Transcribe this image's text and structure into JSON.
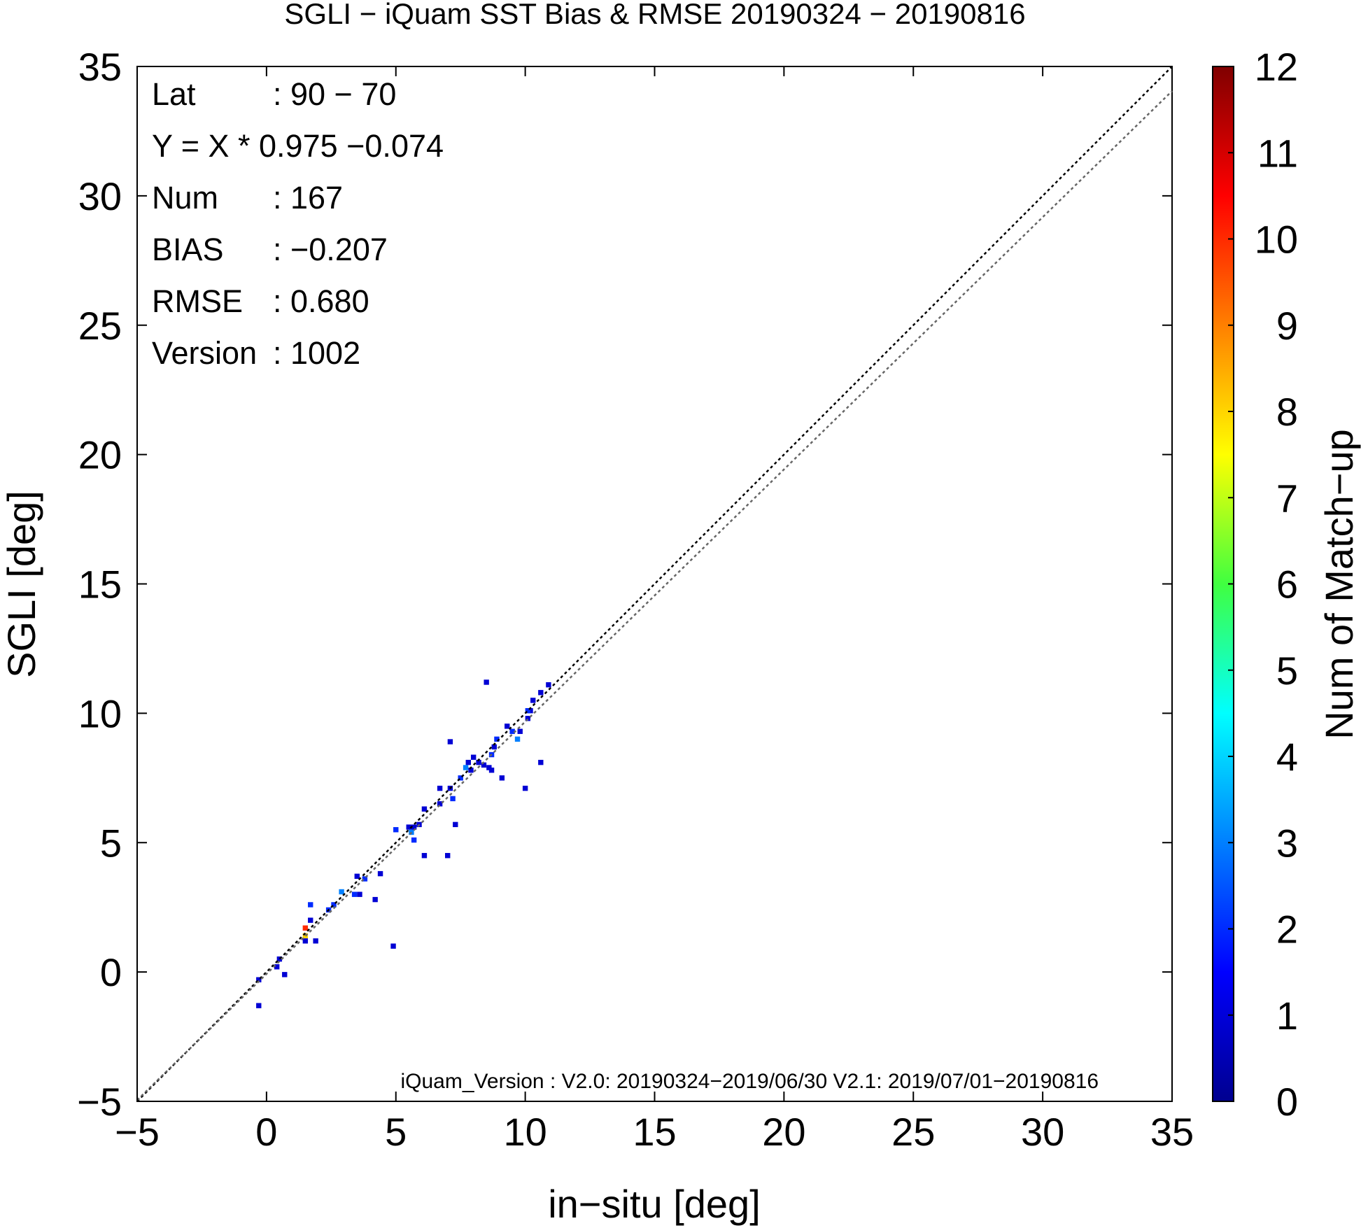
{
  "chart_data": {
    "type": "heatmap",
    "title": "SGLI − iQuam  SST Bias & RMSE 20190324 − 20190816",
    "xlabel": "in−situ [deg]",
    "ylabel": "SGLI [deg]",
    "xlim": [
      -5,
      35
    ],
    "ylim": [
      -5,
      35
    ],
    "xticks": [
      -5,
      0,
      5,
      10,
      15,
      20,
      25,
      30,
      35
    ],
    "yticks": [
      -5,
      0,
      5,
      10,
      15,
      20,
      25,
      30,
      35
    ],
    "x_tick_labels": [
      "−5",
      "0",
      "5",
      "10",
      "15",
      "20",
      "25",
      "30",
      "35"
    ],
    "y_tick_labels": [
      "−5",
      "0",
      "5",
      "10",
      "15",
      "20",
      "25",
      "30",
      "35"
    ],
    "grid": false,
    "stats": [
      {
        "key": "Lat",
        "value": ": 90 − 70"
      },
      {
        "key": "Y = X * 0.975 −0.074",
        "value": ""
      },
      {
        "key": "Num",
        "value": ": 167"
      },
      {
        "key": "BIAS",
        "value": ": −0.207"
      },
      {
        "key": "RMSE",
        "value": ": 0.680"
      },
      {
        "key": "Version",
        "value": ": 1002"
      }
    ],
    "footnote": "iQuam_Version : V2.0: 20190324−2019/06/30 V2.1: 2019/07/01−20190816",
    "lines": [
      {
        "slope": 1.0,
        "intercept": 0.0,
        "style": "dotted",
        "color": "#000000"
      },
      {
        "slope": 0.975,
        "intercept": -0.074,
        "style": "dotted",
        "color": "#666666"
      }
    ],
    "colorbar": {
      "label": "Num of Match−up",
      "range": [
        0,
        12
      ],
      "ticks": [
        0,
        1,
        2,
        3,
        4,
        5,
        6,
        7,
        8,
        9,
        10,
        11,
        12
      ],
      "tick_labels": [
        "0",
        "1",
        "2",
        "3",
        "4",
        "5",
        "6",
        "7",
        "8",
        "9",
        "10",
        "11",
        "12"
      ],
      "colormap": "jet"
    },
    "cell_size": 0.2,
    "cells": [
      [
        -0.3,
        -0.3,
        1
      ],
      [
        -0.3,
        -1.3,
        1
      ],
      [
        0.5,
        0.5,
        1
      ],
      [
        0.4,
        0.2,
        1
      ],
      [
        0.7,
        -0.1,
        1
      ],
      [
        1.5,
        1.7,
        10
      ],
      [
        1.5,
        1.4,
        8
      ],
      [
        1.7,
        2.0,
        1
      ],
      [
        1.5,
        1.2,
        1
      ],
      [
        1.9,
        1.2,
        1
      ],
      [
        1.7,
        2.6,
        2
      ],
      [
        2.4,
        2.4,
        2
      ],
      [
        2.6,
        2.6,
        2
      ],
      [
        2.9,
        3.1,
        3
      ],
      [
        3.4,
        3.0,
        2
      ],
      [
        3.6,
        3.0,
        1
      ],
      [
        3.5,
        3.7,
        1
      ],
      [
        3.8,
        3.6,
        2
      ],
      [
        4.2,
        2.8,
        1
      ],
      [
        4.4,
        3.8,
        1
      ],
      [
        4.9,
        1.0,
        1
      ],
      [
        5.0,
        5.5,
        2
      ],
      [
        5.5,
        5.6,
        1
      ],
      [
        5.6,
        5.4,
        3
      ],
      [
        5.7,
        5.1,
        2
      ],
      [
        5.7,
        5.6,
        1
      ],
      [
        5.9,
        5.7,
        1
      ],
      [
        6.1,
        4.5,
        1
      ],
      [
        6.1,
        6.3,
        1
      ],
      [
        6.7,
        6.5,
        1
      ],
      [
        6.7,
        7.1,
        1
      ],
      [
        7.1,
        7.1,
        1
      ],
      [
        7.0,
        4.5,
        1
      ],
      [
        7.2,
        6.7,
        2
      ],
      [
        7.3,
        5.7,
        1
      ],
      [
        7.1,
        8.9,
        1
      ],
      [
        7.5,
        7.5,
        2
      ],
      [
        7.7,
        7.9,
        3
      ],
      [
        7.8,
        8.1,
        1
      ],
      [
        7.9,
        7.8,
        1
      ],
      [
        8.0,
        8.3,
        1
      ],
      [
        8.2,
        8.1,
        1
      ],
      [
        8.4,
        8.0,
        1
      ],
      [
        8.6,
        7.9,
        1
      ],
      [
        8.5,
        11.2,
        1
      ],
      [
        8.7,
        8.4,
        2
      ],
      [
        8.8,
        8.7,
        1
      ],
      [
        8.9,
        9.0,
        2
      ],
      [
        8.7,
        7.8,
        1
      ],
      [
        9.1,
        7.5,
        1
      ],
      [
        9.3,
        9.5,
        1
      ],
      [
        9.5,
        9.3,
        2
      ],
      [
        9.7,
        9.0,
        3
      ],
      [
        9.8,
        9.3,
        1
      ],
      [
        10.0,
        7.1,
        1
      ],
      [
        10.1,
        9.8,
        1
      ],
      [
        10.2,
        10.1,
        1
      ],
      [
        10.3,
        10.5,
        1
      ],
      [
        10.6,
        10.8,
        1
      ],
      [
        10.6,
        8.1,
        1
      ],
      [
        10.9,
        11.1,
        1
      ],
      [
        10.1,
        10.1,
        2
      ]
    ]
  }
}
